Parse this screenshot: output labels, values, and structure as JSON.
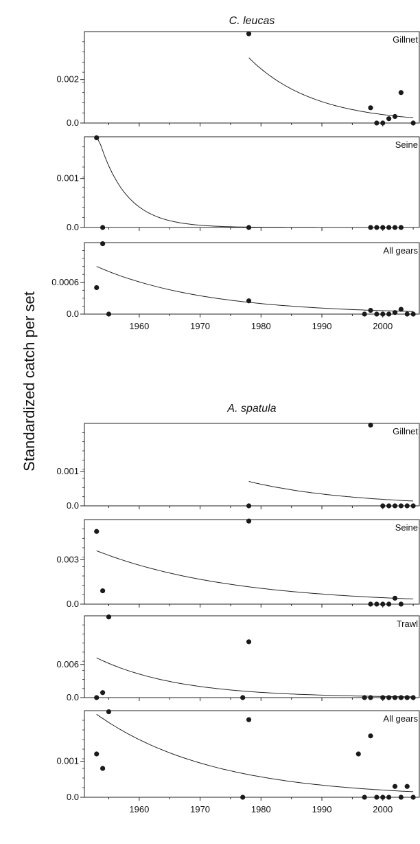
{
  "ylabel": "Standardized catch per set",
  "colors": {
    "axis": "#222222",
    "point": "#1a1a1a",
    "curve": "#222222"
  },
  "chart_data": [
    {
      "type": "scatter",
      "group_title": "C. leucas",
      "panel_label": "Gillnet",
      "xlim": [
        1951,
        2006
      ],
      "ylim": [
        0,
        0.0042
      ],
      "yticks": [
        {
          "v": 0,
          "label": "0.0"
        },
        {
          "v": 0.002,
          "label": "0.002"
        }
      ],
      "points": [
        [
          1978,
          0.0041
        ],
        [
          1998,
          0.0007
        ],
        [
          1999,
          0.0
        ],
        [
          2000,
          0.0
        ],
        [
          2001,
          0.0002
        ],
        [
          2002,
          0.0003
        ],
        [
          2003,
          0.0014
        ],
        [
          2005,
          0.0
        ]
      ],
      "curve": {
        "x0": 1978,
        "x1": 2005,
        "a": 0.003,
        "k": 0.093
      }
    },
    {
      "type": "scatter",
      "group_title": "",
      "panel_label": "Seine",
      "xlim": [
        1951,
        2006
      ],
      "ylim": [
        0,
        0.00185
      ],
      "yticks": [
        {
          "v": 0,
          "label": "0.0"
        },
        {
          "v": 0.001,
          "label": "0.001"
        }
      ],
      "points": [
        [
          1953,
          0.00183
        ],
        [
          1954,
          0.0
        ],
        [
          1978,
          0.0
        ],
        [
          1998,
          0.0
        ],
        [
          1999,
          0.0
        ],
        [
          2000,
          0.0
        ],
        [
          2001,
          0.0
        ],
        [
          2002,
          0.0
        ],
        [
          2003,
          0.0
        ]
      ],
      "curve": {
        "x0": 1953,
        "x1": 2005,
        "a": 0.00195,
        "k": 0.22
      }
    },
    {
      "type": "scatter",
      "group_title": "",
      "panel_label": "All gears",
      "xlim": [
        1951,
        2006
      ],
      "ylim": [
        0,
        0.00135
      ],
      "yticks": [
        {
          "v": 0,
          "label": "0.0"
        },
        {
          "v": 0.0006,
          "label": "0.0006"
        }
      ],
      "points": [
        [
          1953,
          0.0005
        ],
        [
          1954,
          0.00133
        ],
        [
          1955,
          0.0
        ],
        [
          1978,
          0.00025
        ],
        [
          1997,
          0.0
        ],
        [
          1998,
          7e-05
        ],
        [
          1999,
          0.0
        ],
        [
          2000,
          0.0
        ],
        [
          2001,
          0.0
        ],
        [
          2002,
          3e-05
        ],
        [
          2003,
          9e-05
        ],
        [
          2004,
          0.0
        ],
        [
          2005,
          0.0
        ]
      ],
      "curve": {
        "x0": 1953,
        "x1": 2005,
        "a": 0.0009,
        "k": 0.056
      },
      "xticks": [
        1960,
        1970,
        1980,
        1990,
        2000
      ]
    },
    {
      "type": "scatter",
      "group_title": "A. spatula",
      "panel_label": "Gillnet",
      "xlim": [
        1951,
        2006
      ],
      "ylim": [
        0,
        0.0024
      ],
      "yticks": [
        {
          "v": 0,
          "label": "0.0"
        },
        {
          "v": 0.001,
          "label": "0.001"
        }
      ],
      "points": [
        [
          1978,
          0.0
        ],
        [
          1998,
          0.00235
        ],
        [
          2000,
          0.0
        ],
        [
          2001,
          0.0
        ],
        [
          2002,
          0.0
        ],
        [
          2003,
          0.0
        ],
        [
          2004,
          0.0
        ],
        [
          2005,
          0.0
        ]
      ],
      "curve": {
        "x0": 1978,
        "x1": 2005,
        "a": 0.00071,
        "k": 0.06
      }
    },
    {
      "type": "scatter",
      "group_title": "",
      "panel_label": "Seine",
      "xlim": [
        1951,
        2006
      ],
      "ylim": [
        0,
        0.0057
      ],
      "yticks": [
        {
          "v": 0,
          "label": "0.0"
        },
        {
          "v": 0.003,
          "label": "0.003"
        }
      ],
      "points": [
        [
          1953,
          0.0049
        ],
        [
          1954,
          0.0009
        ],
        [
          1978,
          0.0056
        ],
        [
          1998,
          0.0
        ],
        [
          1999,
          0.0
        ],
        [
          2000,
          0.0
        ],
        [
          2001,
          0.0
        ],
        [
          2002,
          0.0004
        ],
        [
          2003,
          0.0
        ]
      ],
      "curve": {
        "x0": 1953,
        "x1": 2005,
        "a": 0.0036,
        "k": 0.045
      }
    },
    {
      "type": "scatter",
      "group_title": "",
      "panel_label": "Trawl",
      "xlim": [
        1951,
        2006
      ],
      "ylim": [
        0,
        0.0148
      ],
      "yticks": [
        {
          "v": 0,
          "label": "0.0"
        },
        {
          "v": 0.006,
          "label": "0.006"
        }
      ],
      "points": [
        [
          1953,
          0.0
        ],
        [
          1954,
          0.0009
        ],
        [
          1955,
          0.0146
        ],
        [
          1977,
          0.0
        ],
        [
          1978,
          0.0101
        ],
        [
          1997,
          0.0
        ],
        [
          1998,
          0.0
        ],
        [
          2000,
          0.0
        ],
        [
          2001,
          0.0
        ],
        [
          2002,
          0.0
        ],
        [
          2003,
          0.0
        ],
        [
          2004,
          0.0
        ],
        [
          2005,
          0.0
        ]
      ],
      "curve": {
        "x0": 1953,
        "x1": 2005,
        "a": 0.0072,
        "k": 0.075
      }
    },
    {
      "type": "scatter",
      "group_title": "",
      "panel_label": "All gears",
      "xlim": [
        1951,
        2006
      ],
      "ylim": [
        0,
        0.0024
      ],
      "yticks": [
        {
          "v": 0,
          "label": "0.0"
        },
        {
          "v": 0.001,
          "label": "0.001"
        }
      ],
      "points": [
        [
          1953,
          0.0012
        ],
        [
          1954,
          0.0008
        ],
        [
          1955,
          0.00237
        ],
        [
          1977,
          0.0
        ],
        [
          1978,
          0.00215
        ],
        [
          1996,
          0.0012
        ],
        [
          1997,
          0.0
        ],
        [
          1998,
          0.0017
        ],
        [
          1999,
          0.0
        ],
        [
          2000,
          0.0
        ],
        [
          2001,
          0.0
        ],
        [
          2002,
          0.0003
        ],
        [
          2003,
          0.0
        ],
        [
          2004,
          0.0003
        ],
        [
          2005,
          0.0
        ]
      ],
      "curve": {
        "x0": 1953,
        "x1": 2005,
        "a": 0.0023,
        "k": 0.052
      },
      "xticks": [
        1960,
        1970,
        1980,
        1990,
        2000
      ]
    }
  ]
}
